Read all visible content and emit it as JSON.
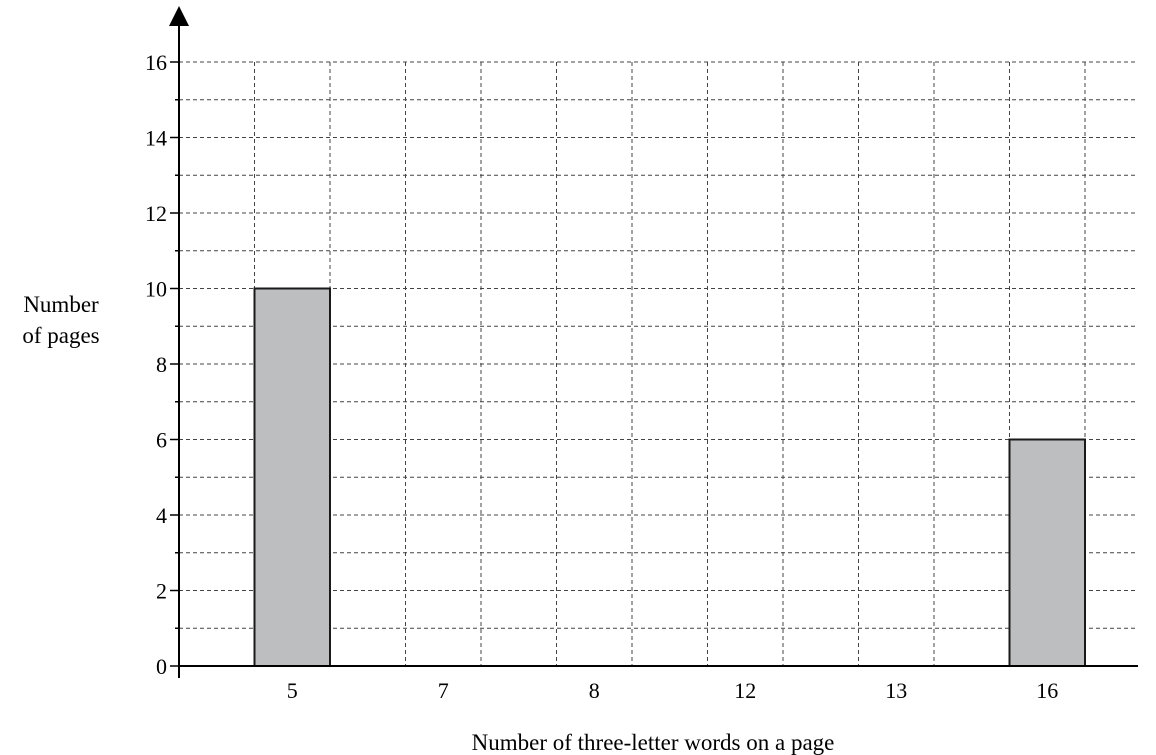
{
  "chart_data": {
    "type": "bar",
    "categories": [
      "5",
      "7",
      "8",
      "12",
      "13",
      "16"
    ],
    "values": [
      10,
      null,
      null,
      null,
      null,
      6
    ],
    "title": "",
    "xlabel": "Number of three-letter words on a page",
    "ylabel_lines": [
      "Number",
      "of pages"
    ],
    "ylim": [
      0,
      16
    ],
    "yticks": [
      0,
      2,
      4,
      6,
      8,
      10,
      12,
      14,
      16
    ],
    "minor_step": 1,
    "grid": true,
    "bar_color": "#bcbec0",
    "bar_stroke": "#1a1a1a"
  }
}
